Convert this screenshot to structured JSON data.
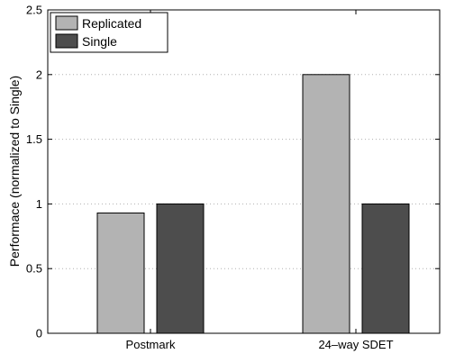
{
  "chart_data": {
    "type": "bar",
    "categories": [
      "Postmark",
      "24–way SDET"
    ],
    "series": [
      {
        "name": "Replicated",
        "values": [
          0.93,
          2.0
        ],
        "color": "#b3b3b3"
      },
      {
        "name": "Single",
        "values": [
          1.0,
          1.0
        ],
        "color": "#4d4d4d"
      }
    ],
    "ylabel": "Performace (normalized to Single)",
    "xlabel": "",
    "ylim": [
      0,
      2.5
    ],
    "yticks": [
      0,
      0.5,
      1,
      1.5,
      2,
      2.5
    ],
    "ytick_labels": [
      "0",
      "0.5",
      "1",
      "1.5",
      "2",
      "2.5"
    ],
    "grid": "horizontal-dotted",
    "legend_position": "top-left"
  }
}
